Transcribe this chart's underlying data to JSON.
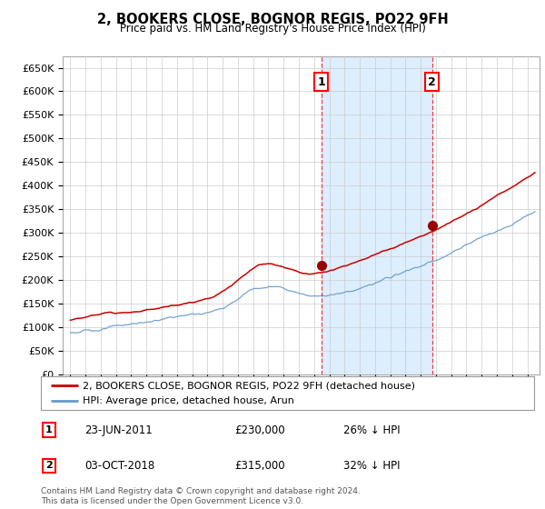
{
  "title": "2, BOOKERS CLOSE, BOGNOR REGIS, PO22 9FH",
  "subtitle": "Price paid vs. HM Land Registry's House Price Index (HPI)",
  "ylim": [
    0,
    675000
  ],
  "yticks": [
    0,
    50000,
    100000,
    150000,
    200000,
    250000,
    300000,
    350000,
    400000,
    450000,
    500000,
    550000,
    600000,
    650000
  ],
  "ytick_labels": [
    "£0",
    "£50K",
    "£100K",
    "£150K",
    "£200K",
    "£250K",
    "£300K",
    "£350K",
    "£400K",
    "£450K",
    "£500K",
    "£550K",
    "£600K",
    "£650K"
  ],
  "legend1": "2, BOOKERS CLOSE, BOGNOR REGIS, PO22 9FH (detached house)",
  "legend2": "HPI: Average price, detached house, Arun",
  "marker1_date": "23-JUN-2011",
  "marker1_price": 230000,
  "marker1_hpi_pct": "26%",
  "marker2_date": "03-OCT-2018",
  "marker2_price": 315000,
  "marker2_hpi_pct": "32%",
  "footnote": "Contains HM Land Registry data © Crown copyright and database right 2024.\nThis data is licensed under the Open Government Licence v3.0.",
  "line_color_property": "#cc0000",
  "line_color_hpi": "#6699cc",
  "shade_color": "#ddeeff",
  "plot_bg_color": "#ffffff",
  "marker1_x": 2011.48,
  "marker2_x": 2018.75,
  "xlim_left": 1994.5,
  "xlim_right": 2025.8
}
